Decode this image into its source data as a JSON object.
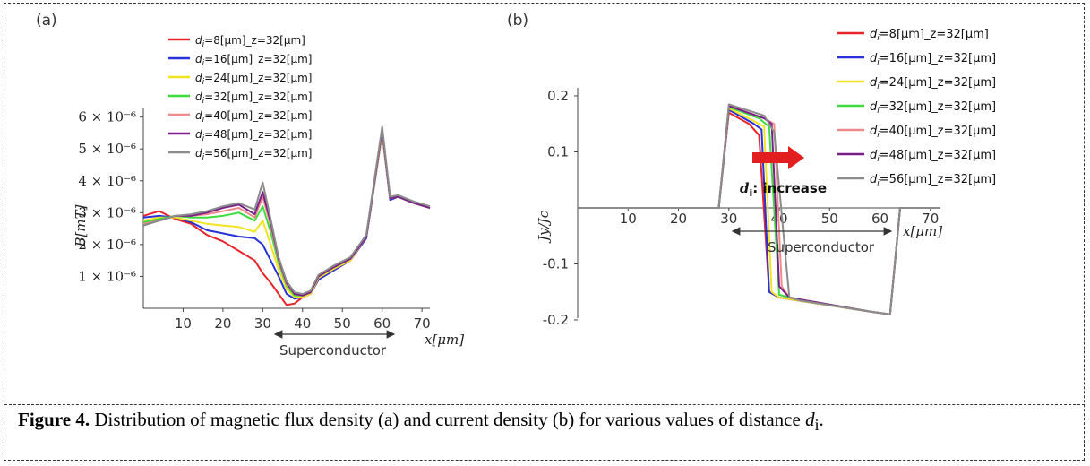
{
  "caption": {
    "label": "Figure 4.",
    "text": " Distribution of magnetic flux density (a) and current density (b) for various values of distance ",
    "symbol": "d",
    "subscript": "i",
    "end": "."
  },
  "chart_data": [
    {
      "panel": "(a)",
      "type": "line",
      "xlabel": "x[μm]",
      "ylabel": "B[mT]",
      "xlim": [
        0,
        72
      ],
      "ylim": [
        0,
        6.3e-06
      ],
      "xticks": [
        "10",
        "20",
        "30",
        "40",
        "50",
        "60",
        "70"
      ],
      "yticks": [
        "1 × 10⁻⁶",
        "2 × 10⁻⁶",
        "3 × 10⁻⁶",
        "4 × 10⁻⁶",
        "5 × 10⁻⁶",
        "6 × 10⁻⁶"
      ],
      "annotation": "Superconductor",
      "annotation_range": [
        28,
        56
      ],
      "legend_position": "top-center",
      "x": [
        0,
        4,
        8,
        12,
        16,
        20,
        24,
        28,
        30,
        32,
        34,
        36,
        38,
        40,
        42,
        44,
        48,
        52,
        56,
        60,
        62,
        64,
        68,
        72
      ],
      "series": [
        {
          "name": "di=8[μm]_z=32[μm]",
          "color": "#e8232a",
          "values": [
            2.9e-06,
            3.05e-06,
            2.8e-06,
            2.65e-06,
            2.3e-06,
            2.1e-06,
            1.8e-06,
            1.5e-06,
            1.1e-06,
            8e-07,
            4.5e-07,
            1e-07,
            1.5e-07,
            3.5e-07,
            4.5e-07,
            9e-07,
            1.2e-06,
            1.5e-06,
            2.2e-06,
            5.5e-06,
            3.4e-06,
            3.5e-06,
            3.3e-06,
            3.15e-06
          ]
        },
        {
          "name": "di=16[μm]_z=32[μm]",
          "color": "#2631d6",
          "values": [
            2.85e-06,
            2.9e-06,
            2.85e-06,
            2.7e-06,
            2.45e-06,
            2.35e-06,
            2.25e-06,
            2.2e-06,
            2e-06,
            1.5e-06,
            1e-06,
            4.5e-07,
            3e-07,
            3.5e-07,
            4.5e-07,
            9e-07,
            1.2e-06,
            1.5e-06,
            2.2e-06,
            5.5e-06,
            3.4e-06,
            3.5e-06,
            3.3e-06,
            3.15e-06
          ]
        },
        {
          "name": "di=24[μm]_z=32[μm]",
          "color": "#f2e422",
          "values": [
            2.75e-06,
            2.85e-06,
            2.85e-06,
            2.75e-06,
            2.65e-06,
            2.6e-06,
            2.55e-06,
            2.4e-06,
            2.75e-06,
            2e-06,
            1.2e-06,
            6e-07,
            3.5e-07,
            3.5e-07,
            4.5e-07,
            9.5e-07,
            1.25e-06,
            1.5e-06,
            2.25e-06,
            5.5e-06,
            3.45e-06,
            3.5e-06,
            3.3e-06,
            3.15e-06
          ]
        },
        {
          "name": "di=32[μm]_z=32[μm]",
          "color": "#3ddd3d",
          "values": [
            2.7e-06,
            2.8e-06,
            2.9e-06,
            2.85e-06,
            2.85e-06,
            2.9e-06,
            3e-06,
            2.75e-06,
            3.2e-06,
            2.4e-06,
            1.4e-06,
            7e-07,
            4e-07,
            4e-07,
            5e-07,
            1e-06,
            1.3e-06,
            1.55e-06,
            2.25e-06,
            5.6e-06,
            3.45e-06,
            3.5e-06,
            3.3e-06,
            3.15e-06
          ]
        },
        {
          "name": "di=40[μm]_z=32[μm]",
          "color": "#f08a8a",
          "values": [
            2.65e-06,
            2.75e-06,
            2.9e-06,
            2.9e-06,
            2.95e-06,
            3.05e-06,
            3.15e-06,
            2.85e-06,
            3.5e-06,
            2.6e-06,
            1.5e-06,
            7.5e-07,
            4.5e-07,
            4e-07,
            5e-07,
            1e-06,
            1.3e-06,
            1.55e-06,
            2.25e-06,
            5.6e-06,
            3.45e-06,
            3.5e-06,
            3.3e-06,
            3.15e-06
          ]
        },
        {
          "name": "di=48[μm]_z=32[μm]",
          "color": "#7a1e8a",
          "values": [
            2.6e-06,
            2.75e-06,
            2.9e-06,
            2.9e-06,
            3e-06,
            3.15e-06,
            3.25e-06,
            2.95e-06,
            3.65e-06,
            2.7e-06,
            1.55e-06,
            8e-07,
            4.5e-07,
            4e-07,
            5e-07,
            1e-06,
            1.3e-06,
            1.55e-06,
            2.25e-06,
            5.6e-06,
            3.45e-06,
            3.5e-06,
            3.3e-06,
            3.15e-06
          ]
        },
        {
          "name": "di=56[μm]_z=32[μm]",
          "color": "#8c8c8c",
          "values": [
            2.6e-06,
            2.75e-06,
            2.9e-06,
            2.95e-06,
            3.05e-06,
            3.2e-06,
            3.3e-06,
            3.1e-06,
            3.95e-06,
            2.8e-06,
            1.6e-06,
            8.5e-07,
            5e-07,
            4.5e-07,
            5.5e-07,
            1.05e-06,
            1.35e-06,
            1.6e-06,
            2.3e-06,
            5.7e-06,
            3.5e-06,
            3.55e-06,
            3.35e-06,
            3.2e-06
          ]
        }
      ]
    },
    {
      "panel": "(b)",
      "type": "line",
      "xlabel": "x[μm]",
      "ylabel": "Jy/Jc",
      "xlim": [
        0,
        72
      ],
      "ylim": [
        -0.21,
        0.21
      ],
      "xticks": [
        "10",
        "20",
        "30",
        "40",
        "50",
        "60",
        "70"
      ],
      "yticks": [
        "0.2",
        "0.1",
        "-0.1",
        "-0.2"
      ],
      "annotation": "Superconductor",
      "annotation_range": [
        28,
        62
      ],
      "arrow_annotation": "d",
      "arrow_annotation_sub": "i",
      "arrow_annotation_text": ": increase",
      "legend_position": "top-right",
      "series": [
        {
          "name": "di=8[μm]_z=32[μm]",
          "color": "#e8232a",
          "points": [
            [
              0,
              0
            ],
            [
              28,
              0
            ],
            [
              30,
              0.17
            ],
            [
              34,
              0.15
            ],
            [
              36,
              0.13
            ],
            [
              38,
              -0.15
            ],
            [
              40,
              -0.16
            ],
            [
              58,
              -0.185
            ],
            [
              62,
              -0.19
            ],
            [
              64,
              0
            ],
            [
              72,
              0
            ]
          ]
        },
        {
          "name": "di=16[μm]_z=32[μm]",
          "color": "#2631d6",
          "points": [
            [
              0,
              0
            ],
            [
              28,
              0
            ],
            [
              30,
              0.175
            ],
            [
              35,
              0.15
            ],
            [
              36.5,
              0.14
            ],
            [
              38,
              -0.15
            ],
            [
              40,
              -0.16
            ],
            [
              58,
              -0.185
            ],
            [
              62,
              -0.19
            ],
            [
              64,
              0
            ],
            [
              72,
              0
            ]
          ]
        },
        {
          "name": "di=24[μm]_z=32[μm]",
          "color": "#f2e422",
          "points": [
            [
              0,
              0
            ],
            [
              28,
              0
            ],
            [
              30,
              0.178
            ],
            [
              35,
              0.155
            ],
            [
              37,
              0.145
            ],
            [
              38.5,
              -0.15
            ],
            [
              40,
              -0.16
            ],
            [
              58,
              -0.185
            ],
            [
              62,
              -0.19
            ],
            [
              64,
              0
            ],
            [
              72,
              0
            ]
          ]
        },
        {
          "name": "di=32[μm]_z=32[μm]",
          "color": "#3ddd3d",
          "points": [
            [
              0,
              0
            ],
            [
              28,
              0
            ],
            [
              30,
              0.18
            ],
            [
              36,
              0.16
            ],
            [
              38,
              0.145
            ],
            [
              40,
              -0.155
            ],
            [
              42,
              -0.16
            ],
            [
              58,
              -0.185
            ],
            [
              62,
              -0.19
            ],
            [
              64,
              0
            ],
            [
              72,
              0
            ]
          ]
        },
        {
          "name": "di=40[μm]_z=32[μm]",
          "color": "#f08a8a",
          "points": [
            [
              0,
              0
            ],
            [
              28,
              0
            ],
            [
              30,
              0.182
            ],
            [
              37,
              0.16
            ],
            [
              39,
              0.15
            ],
            [
              40.5,
              -0.14
            ],
            [
              42,
              -0.16
            ],
            [
              58,
              -0.185
            ],
            [
              62,
              -0.19
            ],
            [
              64,
              0
            ],
            [
              72,
              0
            ]
          ]
        },
        {
          "name": "di=48[μm]_z=32[μm]",
          "color": "#7a1e8a",
          "points": [
            [
              0,
              0
            ],
            [
              28,
              0
            ],
            [
              30,
              0.182
            ],
            [
              37,
              0.16
            ],
            [
              38.5,
              0.15
            ],
            [
              40,
              -0.14
            ],
            [
              42,
              -0.16
            ],
            [
              58,
              -0.185
            ],
            [
              62,
              -0.19
            ],
            [
              64,
              0
            ],
            [
              72,
              0
            ]
          ]
        },
        {
          "name": "di=56[μm]_z=32[μm]",
          "color": "#8c8c8c",
          "points": [
            [
              0,
              0
            ],
            [
              28,
              0
            ],
            [
              30,
              0.185
            ],
            [
              37,
              0.165
            ],
            [
              39,
              0.135
            ],
            [
              42,
              -0.16
            ],
            [
              44,
              -0.165
            ],
            [
              58,
              -0.185
            ],
            [
              62,
              -0.19
            ],
            [
              64,
              0
            ],
            [
              72,
              0
            ]
          ]
        }
      ]
    }
  ]
}
